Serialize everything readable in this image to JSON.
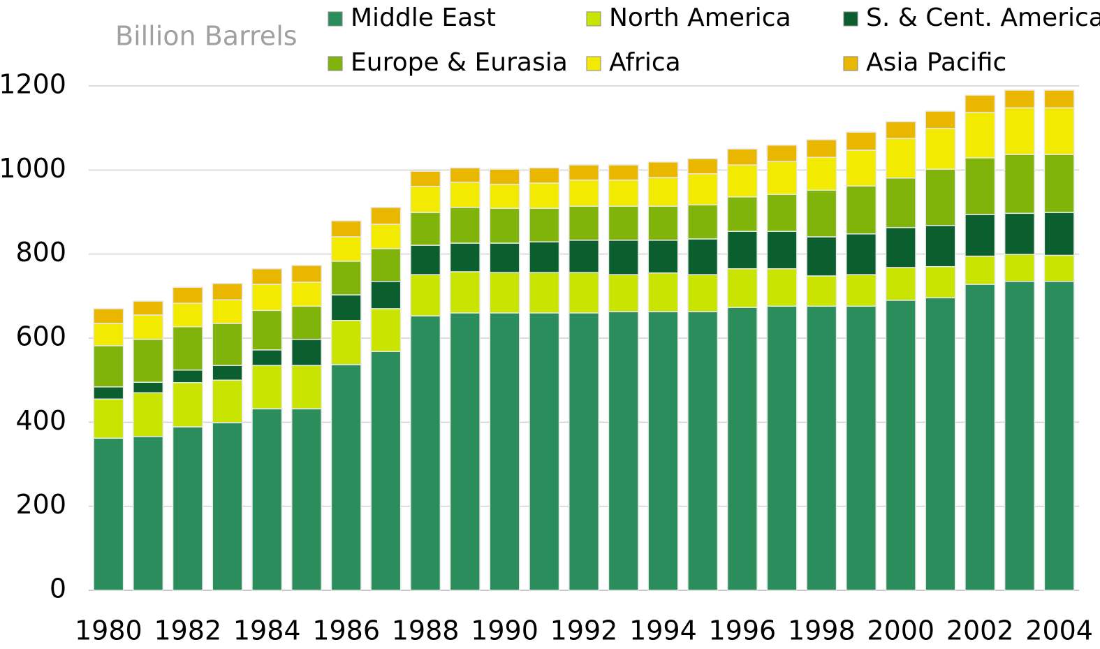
{
  "chart_data": {
    "type": "stacked_bar",
    "title": "Billion Barrels",
    "categories": [
      "1980",
      null,
      "1982",
      null,
      "1984",
      null,
      "1986",
      null,
      "1988",
      null,
      "1990",
      null,
      "1992",
      null,
      "1994",
      null,
      "1996",
      null,
      "1998",
      null,
      "2000",
      null,
      "2002",
      null,
      "2004"
    ],
    "series": [
      {
        "name": "Middle East",
        "color": "#2b8c5c",
        "values": [
          362,
          366,
          389,
          399,
          432,
          432,
          537,
          568,
          653,
          660,
          660,
          660,
          660,
          663,
          663,
          663,
          673,
          676,
          676,
          676,
          690,
          696,
          728,
          735,
          735
        ]
      },
      {
        "name": "North America",
        "color": "#c9e400",
        "values": [
          93,
          104,
          105,
          101,
          103,
          103,
          105,
          102,
          98,
          98,
          96,
          96,
          96,
          88,
          92,
          88,
          92,
          89,
          72,
          75,
          78,
          74,
          67,
          64,
          62
        ]
      },
      {
        "name": "S. & Cent. America",
        "color": "#0b5e2e",
        "values": [
          29,
          25,
          30,
          35,
          37,
          62,
          61,
          65,
          70,
          68,
          70,
          73,
          77,
          82,
          78,
          85,
          89,
          89,
          93,
          97,
          95,
          98,
          99,
          98,
          102
        ]
      },
      {
        "name": "Europe & Eurasia",
        "color": "#80b40a",
        "values": [
          98,
          102,
          103,
          100,
          94,
          79,
          80,
          78,
          78,
          85,
          83,
          80,
          81,
          81,
          81,
          81,
          82,
          88,
          111,
          114,
          118,
          134,
          135,
          140,
          138
        ]
      },
      {
        "name": "Africa",
        "color": "#f2ea00",
        "values": [
          53,
          58,
          56,
          56,
          62,
          57,
          58,
          58,
          62,
          60,
          57,
          60,
          62,
          62,
          68,
          74,
          76,
          78,
          78,
          85,
          94,
          97,
          108,
          111,
          111
        ]
      },
      {
        "name": "Asia Pacific",
        "color": "#e9b600",
        "values": [
          35,
          33,
          38,
          39,
          37,
          40,
          38,
          40,
          36,
          34,
          36,
          36,
          36,
          36,
          37,
          36,
          38,
          39,
          42,
          43,
          40,
          41,
          41,
          42,
          42
        ]
      }
    ],
    "ylim": [
      0,
      1200
    ],
    "yticks": [
      0,
      200,
      400,
      600,
      800,
      1000,
      1200
    ],
    "grid": true,
    "legend": "top"
  }
}
